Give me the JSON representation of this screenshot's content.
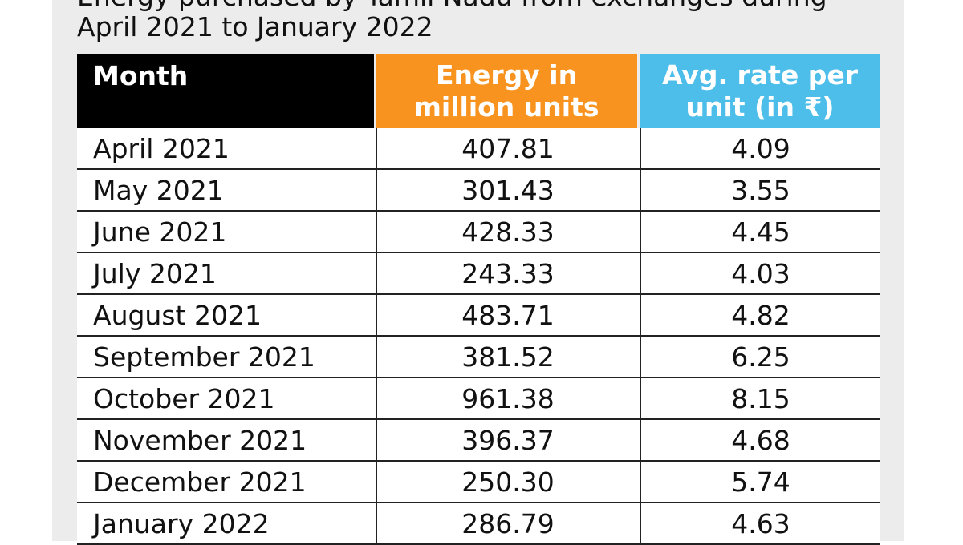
{
  "title": [
    "Energy purchased by Tamil Nadu from exchanges during",
    "April 2021 to January 2022"
  ],
  "table": {
    "header": [
      "Month",
      "Energy in\nmillion units",
      "Avg. rate per\nunit (in ₹)"
    ],
    "rows": [
      [
        "April 2021",
        "407.81",
        "4.09"
      ],
      [
        "May 2021",
        "301.43",
        "3.55"
      ],
      [
        "June 2021",
        "428.33",
        "4.45"
      ],
      [
        "July 2021",
        "243.33",
        "4.03"
      ],
      [
        "August 2021",
        "483.71",
        "4.82"
      ],
      [
        "September 2021",
        "381.52",
        "6.25"
      ],
      [
        "October 2021",
        "961.38",
        "8.15"
      ],
      [
        "November 2021",
        "396.37",
        "4.68"
      ],
      [
        "December 2021",
        "250.30",
        "5.74"
      ],
      [
        "January 2022",
        "286.79",
        "4.63"
      ]
    ]
  }
}
